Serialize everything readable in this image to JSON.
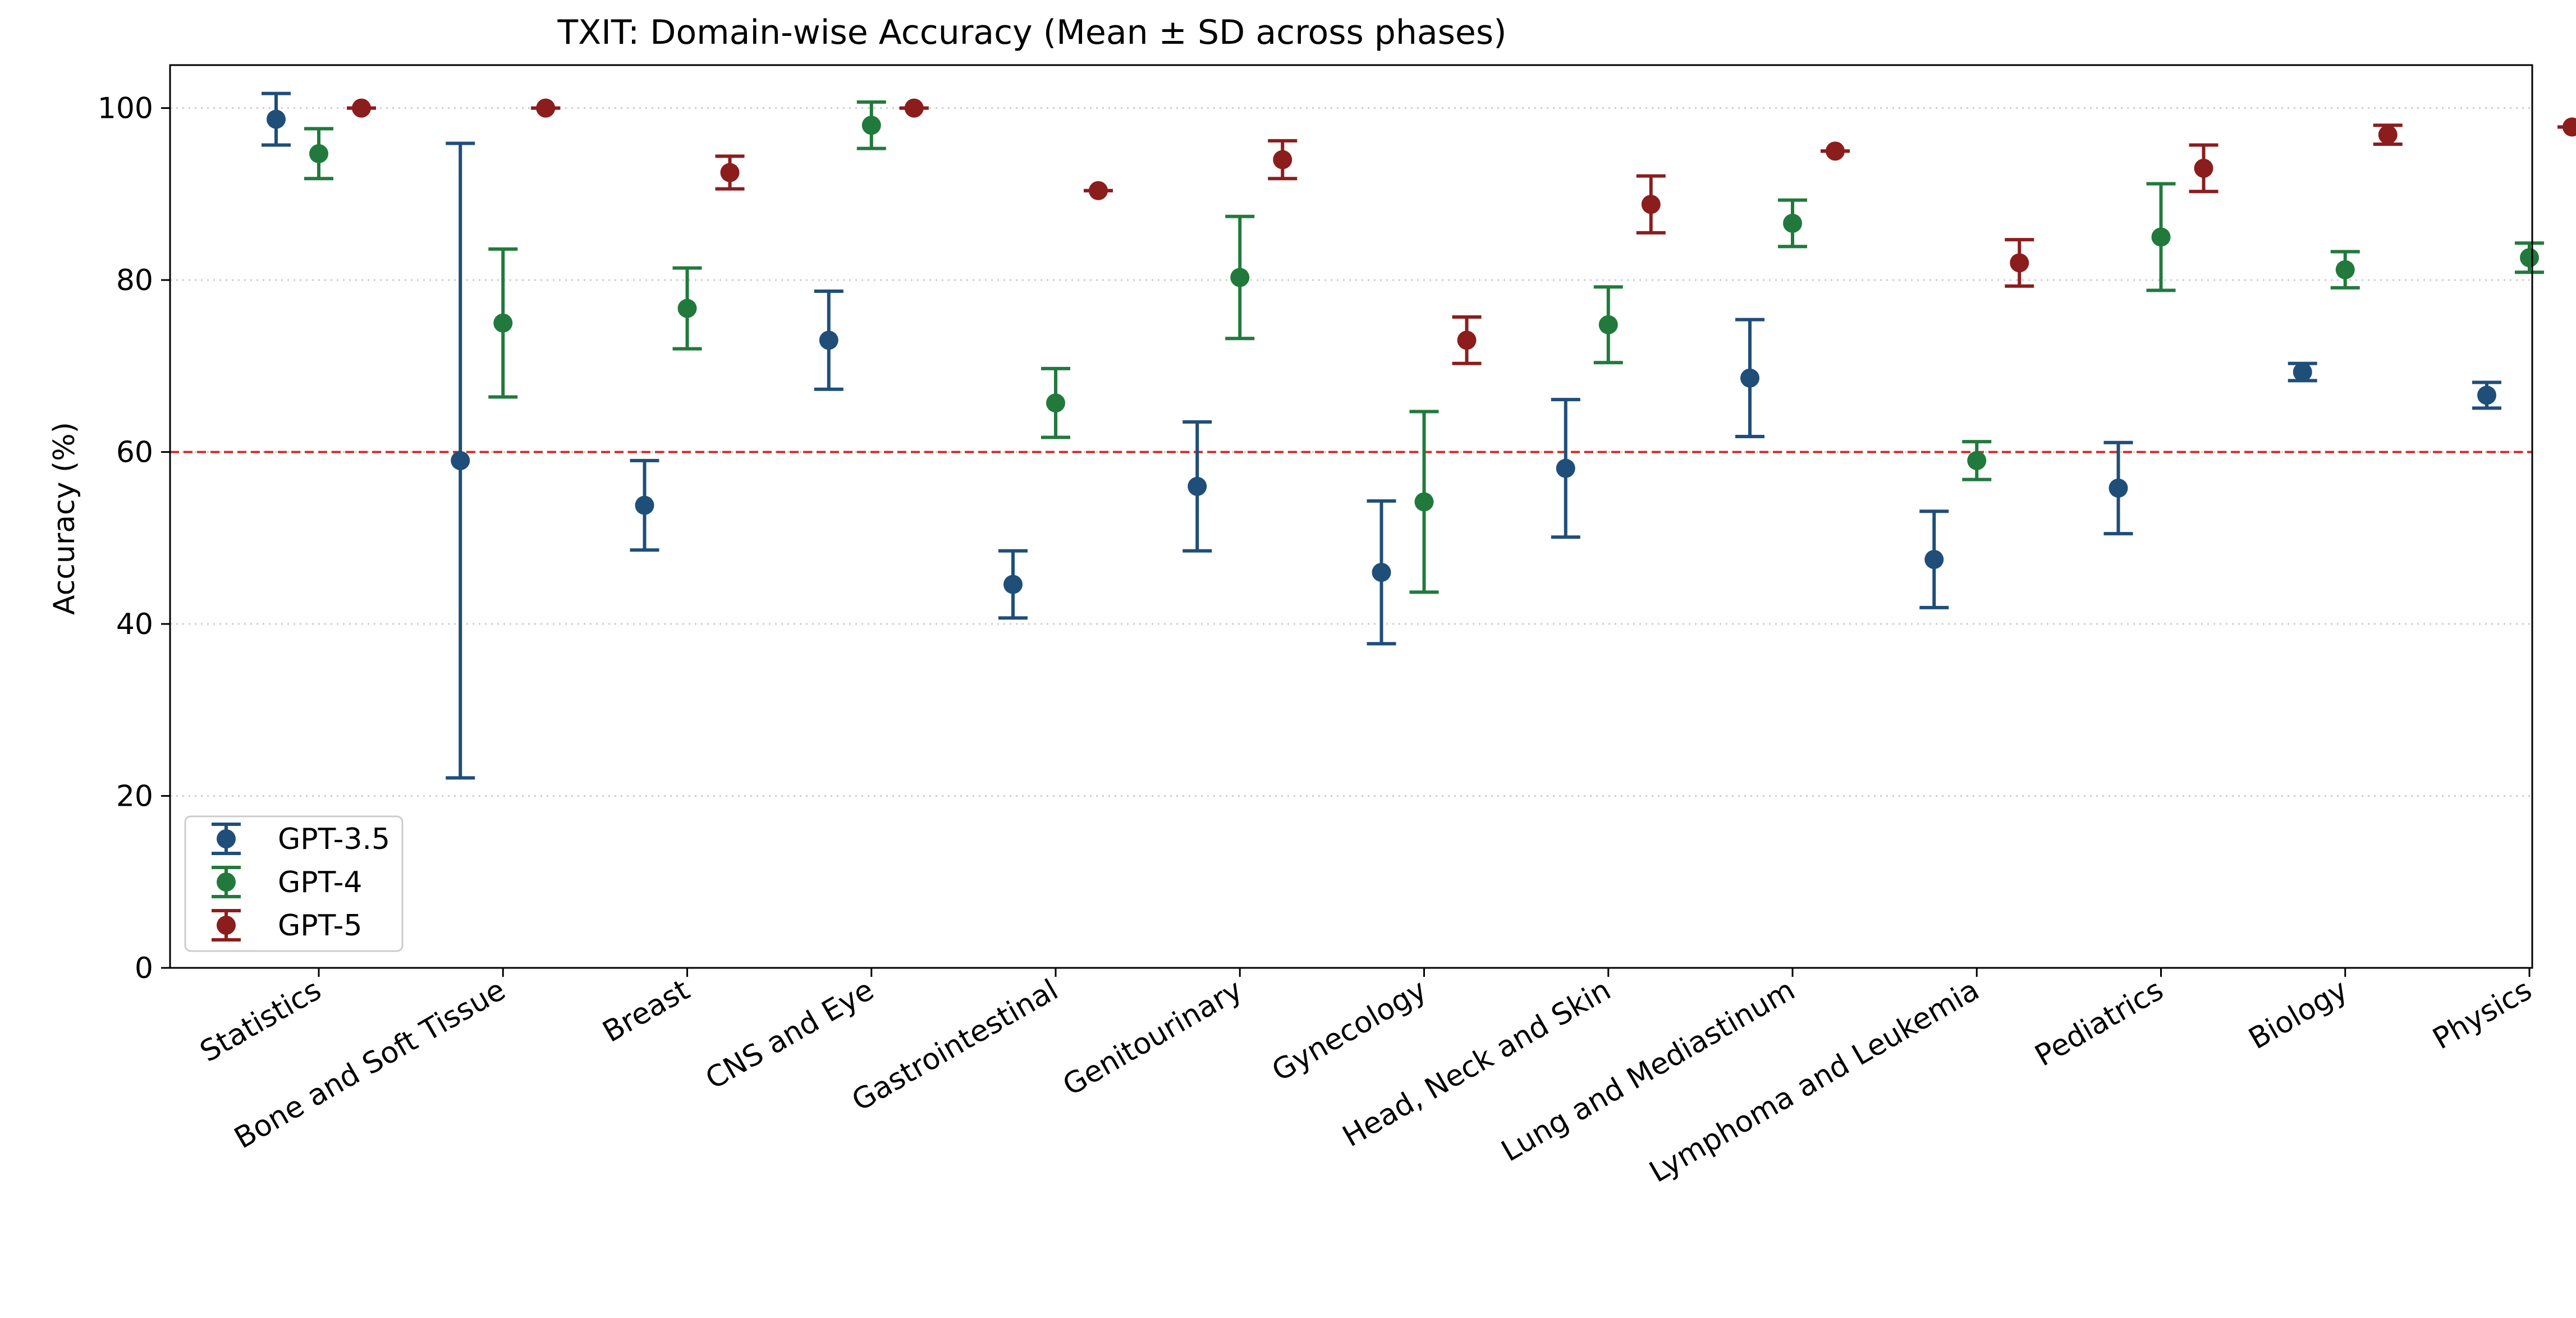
{
  "chart_data": {
    "type": "errorbar",
    "title": "TXIT: Domain-wise Accuracy (Mean ± SD across phases)",
    "xlabel": "",
    "ylabel": "Accuracy (%)",
    "ylim": [
      0,
      105
    ],
    "yticks": [
      0,
      20,
      40,
      60,
      80,
      100
    ],
    "grid": "horizontal-dotted",
    "legend_position": "lower-left",
    "reference_line": {
      "value": 60,
      "style": "dashed",
      "color": "#d62728"
    },
    "categories": [
      "Statistics",
      "Bone and Soft Tissue",
      "Breast",
      "CNS and Eye",
      "Gastrointestinal",
      "Genitourinary",
      "Gynecology",
      "Head, Neck and Skin",
      "Lung and Mediastinum",
      "Lymphoma and Leukemia",
      "Pediatrics",
      "Biology",
      "Physics"
    ],
    "series": [
      {
        "name": "GPT-3.5",
        "color": "#1f4e79",
        "mean": [
          98.7,
          59.0,
          53.8,
          73.0,
          44.6,
          56.0,
          46.0,
          58.1,
          68.6,
          47.5,
          55.8,
          69.3,
          66.6
        ],
        "sd": [
          3.0,
          36.9,
          5.2,
          5.7,
          3.9,
          7.5,
          8.3,
          8.0,
          6.8,
          5.6,
          5.3,
          1.0,
          1.5
        ]
      },
      {
        "name": "GPT-4",
        "color": "#217a3c",
        "mean": [
          94.7,
          75.0,
          76.7,
          98.0,
          65.7,
          80.3,
          54.2,
          74.8,
          86.6,
          59.0,
          85.0,
          81.2,
          82.6
        ],
        "sd": [
          2.9,
          8.6,
          4.7,
          2.7,
          4.0,
          7.1,
          10.5,
          4.4,
          2.7,
          2.2,
          6.2,
          2.1,
          1.7
        ]
      },
      {
        "name": "GPT-5",
        "color": "#8c1d1d",
        "mean": [
          100.0,
          100.0,
          92.5,
          100.0,
          90.4,
          94.0,
          73.0,
          88.8,
          95.0,
          82.0,
          93.0,
          96.9,
          97.8
        ],
        "sd": [
          0.0,
          0.0,
          1.9,
          0.0,
          0.0,
          2.2,
          2.7,
          3.3,
          0.0,
          2.7,
          2.7,
          1.1,
          0.0
        ]
      }
    ]
  }
}
